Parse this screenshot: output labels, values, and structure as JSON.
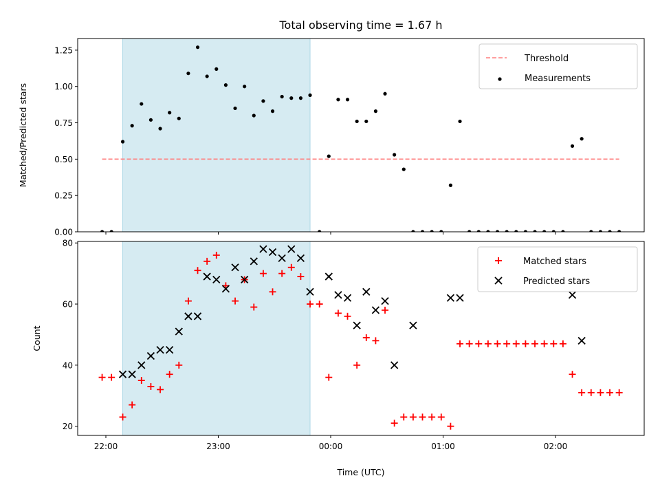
{
  "figure": {
    "title": "Total observing time = 1.67 h",
    "xlabel": "Time (UTC)",
    "x_ticks": [
      "22:00",
      "23:00",
      "00:00",
      "01:00",
      "02:00"
    ],
    "x_tick_minutes": [
      0,
      60,
      120,
      180,
      240
    ],
    "shade_range_minutes": [
      9,
      109
    ],
    "colors": {
      "shade": "#add8e6",
      "threshold": "#ff7f7f",
      "matched": "#ff0000",
      "predicted": "#000000",
      "measurement": "#000000"
    }
  },
  "chart_data": [
    {
      "type": "scatter",
      "ylabel": "Matched/Predicted stars",
      "ylim": [
        0,
        1.33
      ],
      "y_ticks": [
        0.0,
        0.25,
        0.5,
        0.75,
        1.0,
        1.25
      ],
      "y_tick_labels": [
        "0.00",
        "0.25",
        "0.50",
        "0.75",
        "1.00",
        "1.25"
      ],
      "legend": {
        "position": "top-right",
        "entries": [
          "Threshold",
          "Measurements"
        ]
      },
      "threshold": {
        "name": "Threshold",
        "value": 0.5,
        "x_range_minutes": [
          -2,
          274
        ]
      },
      "series": [
        {
          "name": "Measurements",
          "x_minutes": [
            -2,
            3,
            9,
            14,
            19,
            24,
            29,
            34,
            39,
            44,
            49,
            54,
            59,
            64,
            69,
            74,
            79,
            84,
            89,
            94,
            99,
            104,
            109,
            114,
            119,
            124,
            129,
            134,
            139,
            144,
            149,
            154,
            159,
            164,
            169,
            174,
            179,
            184,
            189,
            194,
            199,
            204,
            209,
            214,
            219,
            224,
            229,
            234,
            239,
            244,
            249,
            254,
            259,
            264,
            269,
            274
          ],
          "y": [
            0,
            0,
            0.62,
            0.73,
            0.88,
            0.77,
            0.71,
            0.82,
            0.78,
            1.09,
            1.27,
            1.07,
            1.12,
            1.01,
            0.85,
            1.0,
            0.8,
            0.9,
            0.83,
            0.93,
            0.92,
            0.92,
            0.94,
            0,
            0.52,
            0.91,
            0.91,
            0.76,
            0.76,
            0.83,
            0.95,
            0.53,
            0.43,
            0,
            0,
            0,
            0,
            0.32,
            0.76,
            0,
            0,
            0,
            0,
            0,
            0,
            0,
            0,
            0,
            0,
            0,
            0.59,
            0.64,
            0,
            0,
            0,
            0
          ]
        }
      ]
    },
    {
      "type": "scatter",
      "ylabel": "Count",
      "ylim": [
        17,
        80.5
      ],
      "y_ticks": [
        20,
        40,
        60,
        80
      ],
      "y_tick_labels": [
        "20",
        "40",
        "60",
        "80"
      ],
      "legend": {
        "position": "top-right",
        "entries": [
          "Matched stars",
          "Predicted stars"
        ]
      },
      "series": [
        {
          "name": "Matched stars",
          "marker": "+",
          "x_minutes": [
            -2,
            3,
            9,
            14,
            19,
            24,
            29,
            34,
            39,
            44,
            49,
            54,
            59,
            64,
            69,
            74,
            79,
            84,
            89,
            94,
            99,
            104,
            109,
            114,
            119,
            124,
            129,
            134,
            139,
            144,
            149,
            154,
            159,
            164,
            169,
            174,
            179,
            184,
            189,
            194,
            199,
            204,
            209,
            214,
            219,
            224,
            229,
            234,
            239,
            244,
            249,
            254,
            259,
            264,
            269,
            274
          ],
          "y": [
            36,
            36,
            23,
            27,
            35,
            33,
            32,
            37,
            40,
            61,
            71,
            74,
            76,
            66,
            61,
            68,
            59,
            70,
            64,
            70,
            72,
            69,
            60,
            60,
            36,
            57,
            56,
            40,
            49,
            48,
            58,
            21,
            23,
            23,
            23,
            23,
            23,
            20,
            47,
            47,
            47,
            47,
            47,
            47,
            47,
            47,
            47,
            47,
            47,
            47,
            37,
            31,
            31,
            31,
            31,
            31
          ]
        },
        {
          "name": "Predicted stars",
          "marker": "x",
          "x_minutes": [
            9,
            14,
            19,
            24,
            29,
            34,
            39,
            44,
            49,
            54,
            59,
            64,
            69,
            74,
            79,
            84,
            89,
            94,
            99,
            104,
            109,
            119,
            124,
            129,
            134,
            139,
            144,
            149,
            154,
            164,
            184,
            189,
            249,
            254
          ],
          "y": [
            37,
            37,
            40,
            43,
            45,
            45,
            51,
            56,
            56,
            69,
            68,
            65,
            72,
            68,
            74,
            78,
            77,
            75,
            78,
            75,
            64,
            69,
            63,
            62,
            53,
            64,
            58,
            61,
            40,
            53,
            62,
            62,
            63,
            48
          ]
        }
      ]
    }
  ]
}
